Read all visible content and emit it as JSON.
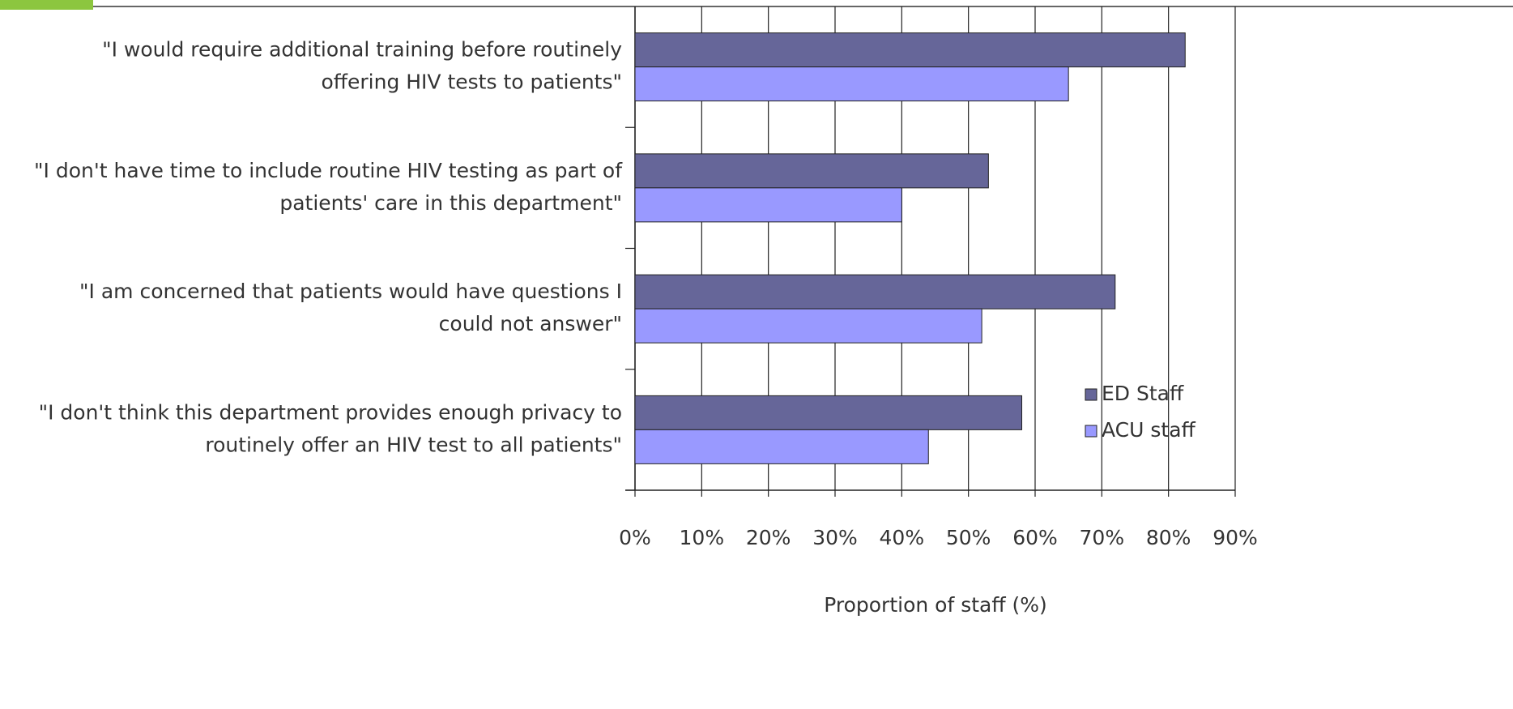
{
  "chart_data": {
    "type": "barh",
    "categories": [
      [
        "\"I would require additional training before routinely",
        "offering HIV tests to patients\""
      ],
      [
        "\"I don't have time to include routine HIV testing as part of",
        "patients' care in this department\""
      ],
      [
        "\"I am concerned that patients would have questions I",
        "could not answer\""
      ],
      [
        "\"I don't think this department provides enough privacy to",
        "routinely offer an HIV test to all patients\""
      ]
    ],
    "series": [
      {
        "name": "ED Staff",
        "color": "#666699",
        "values": [
          82.5,
          53,
          72,
          58
        ]
      },
      {
        "name": "ACU staff",
        "color": "#9999ff",
        "values": [
          65,
          40,
          52,
          44
        ]
      }
    ],
    "xlabel": "Proportion of staff (%)",
    "xlim": [
      0,
      90
    ],
    "xticks": [
      {
        "value": 0,
        "label": "0%"
      },
      {
        "value": 10,
        "label": "10%"
      },
      {
        "value": 20,
        "label": "20%"
      },
      {
        "value": 30,
        "label": "30%"
      },
      {
        "value": 40,
        "label": "40%"
      },
      {
        "value": 50,
        "label": "50%"
      },
      {
        "value": 60,
        "label": "60%"
      },
      {
        "value": 70,
        "label": "70%"
      },
      {
        "value": 80,
        "label": "80%"
      },
      {
        "value": 90,
        "label": "90%"
      }
    ],
    "grid": true,
    "legend": "lower right"
  }
}
